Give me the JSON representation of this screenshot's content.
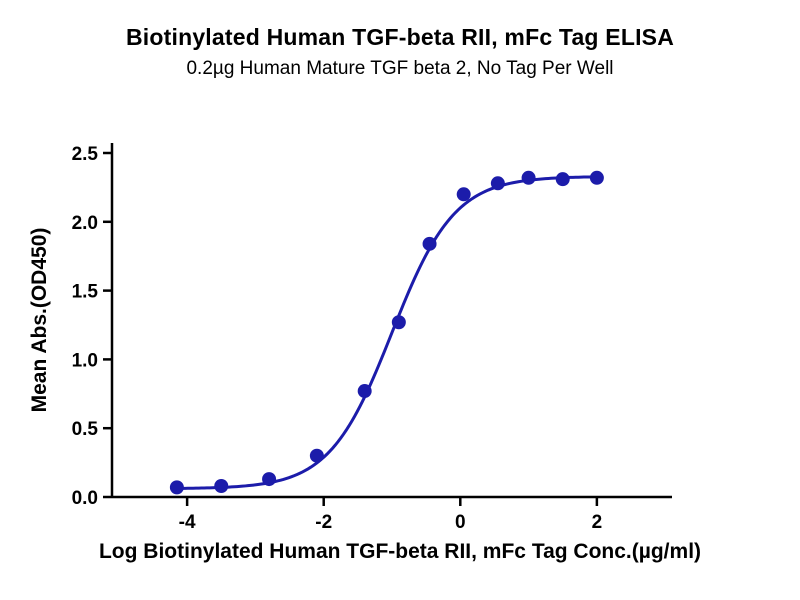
{
  "chart_data": {
    "type": "scatter",
    "title": "Biotinylated Human TGF-beta RII, mFc Tag ELISA",
    "subtitle": "0.2µg Human Mature TGF beta 2, No Tag Per Well",
    "xlabel": "Log Biotinylated Human TGF-beta RII, mFc Tag Conc.(µg/ml)",
    "ylabel": "Mean Abs.(OD450)",
    "xlim": [
      -5.1,
      3.1
    ],
    "ylim": [
      0,
      2.5
    ],
    "x_ticks": [
      -4,
      -2,
      0,
      2
    ],
    "x_tick_labels": [
      "-4",
      "-2",
      "0",
      "2"
    ],
    "y_ticks": [
      0.0,
      0.5,
      1.0,
      1.5,
      2.0,
      2.5
    ],
    "y_tick_labels": [
      "0.0",
      "0.5",
      "1.0",
      "1.5",
      "2.0",
      "2.5"
    ],
    "grid": false,
    "legend": null,
    "marker_color": "#1c1caa",
    "line_color": "#1c1caa",
    "marker_radius": 7,
    "line_width": 3,
    "points": {
      "x": [
        -4.15,
        -3.5,
        -2.8,
        -2.1,
        -1.4,
        -0.9,
        -0.45,
        0.05,
        0.55,
        1.0,
        1.5,
        2.0
      ],
      "y": [
        0.07,
        0.08,
        0.13,
        0.3,
        0.77,
        1.27,
        1.84,
        2.2,
        2.28,
        2.32,
        2.31,
        2.32
      ]
    },
    "fit_curve": {
      "model": "4PL",
      "bottom": 0.06,
      "top": 2.33,
      "logEC50": -1.0,
      "hill": 0.95,
      "x_start": -4.15,
      "x_end": 2.0
    }
  }
}
